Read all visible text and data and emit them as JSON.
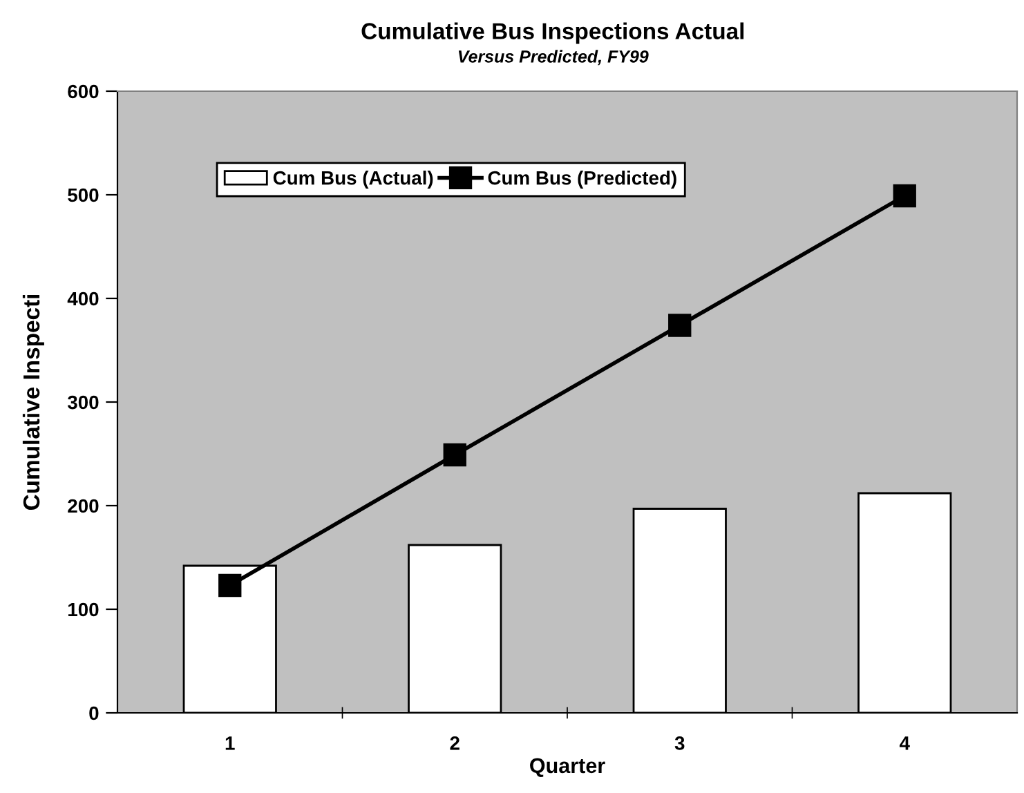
{
  "chart_data": {
    "type": "bar",
    "title": "Cumulative Bus Inspections Actual",
    "subtitle": "Versus Predicted, FY99",
    "xlabel": "Quarter",
    "ylabel": "Cumulative Inspecti",
    "categories": [
      "1",
      "2",
      "3",
      "4"
    ],
    "series": [
      {
        "name": "Cum Bus (Actual)",
        "color": "#ffffff",
        "values": [
          142,
          162,
          197,
          212
        ]
      },
      {
        "name": "Cum Bus (Predicted)",
        "type": "line",
        "color": "#000000",
        "values": [
          123,
          249,
          374,
          499
        ],
        "marker": "square",
        "line_style": "solid"
      }
    ],
    "ylim": [
      0,
      600
    ],
    "yticks": [
      0,
      100,
      200,
      300,
      400,
      500,
      600
    ],
    "grid": false,
    "legend": "top left"
  }
}
